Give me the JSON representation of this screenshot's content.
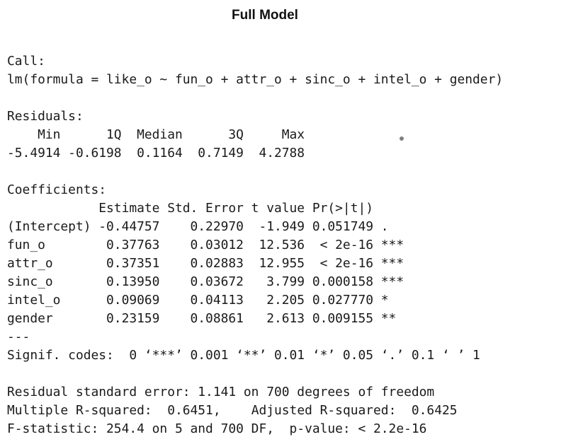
{
  "title": "Full Model",
  "output": {
    "call_header": "Call:",
    "formula": "lm(formula = like_o ~ fun_o + attr_o + sinc_o + intel_o + gender)",
    "residuals_header": "Residuals:",
    "residuals_labels": "    Min      1Q  Median      3Q     Max ",
    "residuals_values": "-5.4914 -0.6198  0.1164  0.7149  4.2788 ",
    "coefficients_header": "Coefficients:",
    "coef_header_row": "            Estimate Std. Error t value Pr(>|t|)    ",
    "coef_rows": [
      "(Intercept) -0.44757    0.22970  -1.949 0.051749 .  ",
      "fun_o        0.37763    0.03012  12.536  < 2e-16 ***",
      "attr_o       0.37351    0.02883  12.955  < 2e-16 ***",
      "sinc_o       0.13950    0.03672   3.799 0.000158 ***",
      "intel_o      0.09069    0.04113   2.205 0.027770 *  ",
      "gender       0.23159    0.08861   2.613 0.009155 ** "
    ],
    "separator": "---",
    "signif_codes": "Signif. codes:  0 ‘***’ 0.001 ‘**’ 0.01 ‘*’ 0.05 ‘.’ 0.1 ‘ ’ 1",
    "rse": "Residual standard error: 1.141 on 700 degrees of freedom",
    "r_squared": "Multiple R-squared:  0.6451,\tAdjusted R-squared:  0.6425 ",
    "f_statistic": "F-statistic: 254.4 on 5 and 700 DF,  p-value: < 2.2e-16"
  }
}
